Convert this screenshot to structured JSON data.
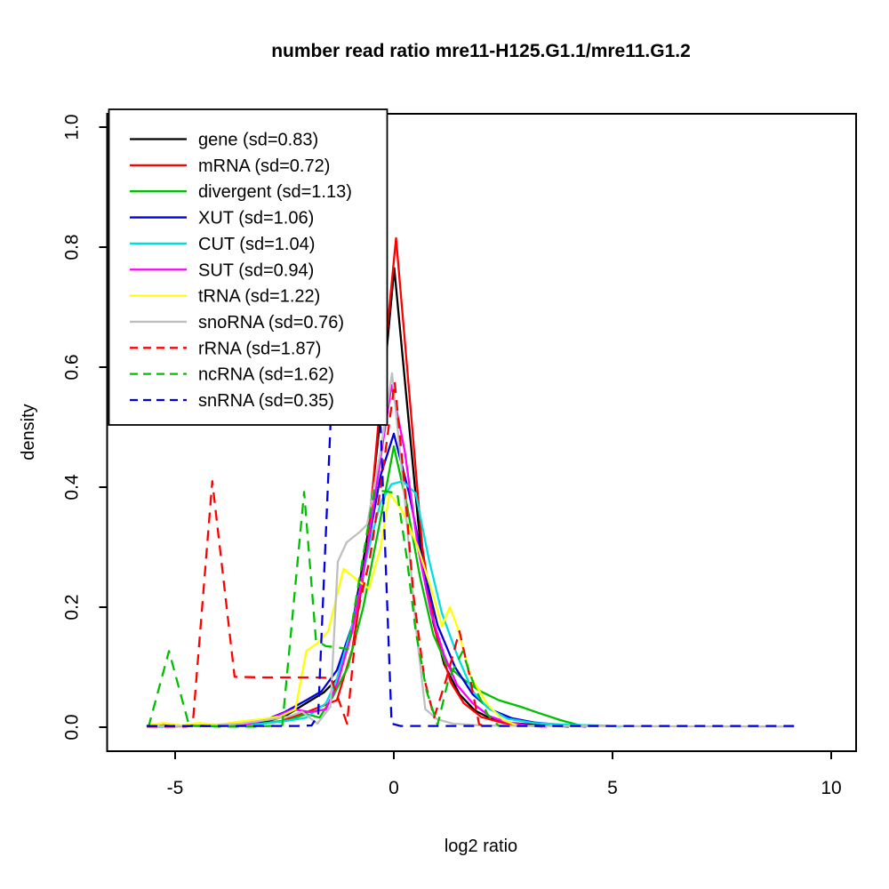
{
  "chart_data": {
    "type": "line",
    "title": "number read ratio mre11-H125.G1.1/mre11.G1.2",
    "xlabel": "log2 ratio",
    "ylabel": "density",
    "x_ticks": [
      {
        "value": -5,
        "label": "-5"
      },
      {
        "value": 0,
        "label": "0"
      },
      {
        "value": 5,
        "label": "5"
      },
      {
        "value": 10,
        "label": "10"
      }
    ],
    "y_ticks": [
      {
        "value": 0.0,
        "label": "0.0"
      },
      {
        "value": 0.2,
        "label": "0.2"
      },
      {
        "value": 0.4,
        "label": "0.4"
      },
      {
        "value": 0.6,
        "label": "0.6"
      },
      {
        "value": 0.8,
        "label": "0.8"
      },
      {
        "value": 1.0,
        "label": "1.0"
      }
    ],
    "xlim": [
      -6.57,
      10.57
    ],
    "ylim": [
      -0.04,
      1.02
    ],
    "grid": false,
    "legend_position": "top-left",
    "series": [
      {
        "name": "gene",
        "sd": 0.83,
        "legend_label": "gene (sd=0.83)",
        "color": "#000000",
        "dashed": false,
        "points": [
          [
            -5.65,
            0.002
          ],
          [
            -4.5,
            0.002
          ],
          [
            -3.6,
            0.004
          ],
          [
            -3.0,
            0.008
          ],
          [
            -2.5,
            0.018
          ],
          [
            -2.05,
            0.038
          ],
          [
            -1.6,
            0.058
          ],
          [
            -1.3,
            0.08
          ],
          [
            -0.95,
            0.17
          ],
          [
            -0.6,
            0.32
          ],
          [
            -0.3,
            0.52
          ],
          [
            0.01,
            0.765
          ],
          [
            0.3,
            0.54
          ],
          [
            0.6,
            0.31
          ],
          [
            0.9,
            0.175
          ],
          [
            1.15,
            0.105
          ],
          [
            1.5,
            0.055
          ],
          [
            1.85,
            0.028
          ],
          [
            2.2,
            0.015
          ],
          [
            2.7,
            0.007
          ],
          [
            3.2,
            0.004
          ],
          [
            3.7,
            0.002
          ],
          [
            4.0,
            0.001
          ]
        ]
      },
      {
        "name": "mRNA",
        "sd": 0.72,
        "legend_label": "mRNA (sd=0.72)",
        "color": "#FF0000",
        "dashed": false,
        "points": [
          [
            -5.65,
            0.001
          ],
          [
            -4.0,
            0.002
          ],
          [
            -3.2,
            0.004
          ],
          [
            -2.6,
            0.01
          ],
          [
            -2.1,
            0.022
          ],
          [
            -1.65,
            0.035
          ],
          [
            -1.3,
            0.045
          ],
          [
            -0.95,
            0.13
          ],
          [
            -0.6,
            0.3
          ],
          [
            -0.3,
            0.55
          ],
          [
            0.05,
            0.815
          ],
          [
            0.35,
            0.56
          ],
          [
            0.65,
            0.3
          ],
          [
            0.95,
            0.16
          ],
          [
            1.3,
            0.075
          ],
          [
            1.6,
            0.04
          ],
          [
            2.0,
            0.017
          ],
          [
            2.5,
            0.007
          ],
          [
            3.0,
            0.003
          ],
          [
            3.4,
            0.001
          ]
        ]
      },
      {
        "name": "divergent",
        "sd": 1.13,
        "legend_label": "divergent (sd=1.13)",
        "color": "#00BF00",
        "dashed": false,
        "points": [
          [
            -5.65,
            0.001
          ],
          [
            -3.4,
            0.003
          ],
          [
            -2.85,
            0.008
          ],
          [
            -2.4,
            0.012
          ],
          [
            -2.0,
            0.022
          ],
          [
            -1.7,
            0.016
          ],
          [
            -1.4,
            0.05
          ],
          [
            -1.05,
            0.1
          ],
          [
            -0.7,
            0.2
          ],
          [
            -0.35,
            0.33
          ],
          [
            0.0,
            0.468
          ],
          [
            0.3,
            0.37
          ],
          [
            0.6,
            0.25
          ],
          [
            0.9,
            0.155
          ],
          [
            1.2,
            0.105
          ],
          [
            1.55,
            0.082
          ],
          [
            1.95,
            0.061
          ],
          [
            2.4,
            0.045
          ],
          [
            2.9,
            0.034
          ],
          [
            3.3,
            0.024
          ],
          [
            3.8,
            0.012
          ],
          [
            4.3,
            0.002
          ]
        ]
      },
      {
        "name": "XUT",
        "sd": 1.06,
        "legend_label": "XUT (sd=1.06)",
        "color": "#0000E0",
        "dashed": false,
        "points": [
          [
            -5.65,
            0.001
          ],
          [
            -3.6,
            0.003
          ],
          [
            -3.0,
            0.01
          ],
          [
            -2.5,
            0.025
          ],
          [
            -2.0,
            0.045
          ],
          [
            -1.65,
            0.06
          ],
          [
            -1.3,
            0.095
          ],
          [
            -0.95,
            0.17
          ],
          [
            -0.6,
            0.3
          ],
          [
            -0.3,
            0.42
          ],
          [
            0.0,
            0.489
          ],
          [
            0.35,
            0.39
          ],
          [
            0.7,
            0.26
          ],
          [
            1.0,
            0.17
          ],
          [
            1.4,
            0.1
          ],
          [
            1.8,
            0.055
          ],
          [
            2.2,
            0.03
          ],
          [
            2.7,
            0.015
          ],
          [
            3.2,
            0.008
          ],
          [
            3.8,
            0.004
          ],
          [
            4.4,
            0.001
          ]
        ]
      },
      {
        "name": "CUT",
        "sd": 1.04,
        "legend_label": "CUT (sd=1.04)",
        "color": "#00DFE0",
        "dashed": false,
        "points": [
          [
            -5.65,
            0.001
          ],
          [
            -3.6,
            0.003
          ],
          [
            -3.0,
            0.006
          ],
          [
            -2.5,
            0.01
          ],
          [
            -2.0,
            0.016
          ],
          [
            -1.55,
            0.04
          ],
          [
            -1.3,
            0.08
          ],
          [
            -0.95,
            0.17
          ],
          [
            -0.6,
            0.29
          ],
          [
            -0.3,
            0.375
          ],
          [
            -0.05,
            0.405
          ],
          [
            0.2,
            0.41
          ],
          [
            0.5,
            0.39
          ],
          [
            0.8,
            0.28
          ],
          [
            1.1,
            0.19
          ],
          [
            1.45,
            0.12
          ],
          [
            1.8,
            0.06
          ],
          [
            2.15,
            0.032
          ],
          [
            2.6,
            0.014
          ],
          [
            3.2,
            0.007
          ],
          [
            4.0,
            0.004
          ],
          [
            4.7,
            0.003
          ],
          [
            5.2,
            0.001
          ]
        ]
      },
      {
        "name": "SUT",
        "sd": 0.94,
        "legend_label": "SUT (sd=0.94)",
        "color": "#FF00FF",
        "dashed": false,
        "points": [
          [
            -5.65,
            0.002
          ],
          [
            -5.45,
            0.005
          ],
          [
            -5.1,
            0.002
          ],
          [
            -4.0,
            0.002
          ],
          [
            -3.3,
            0.006
          ],
          [
            -2.8,
            0.015
          ],
          [
            -2.3,
            0.03
          ],
          [
            -1.9,
            0.025
          ],
          [
            -1.55,
            0.03
          ],
          [
            -1.28,
            0.075
          ],
          [
            -0.95,
            0.16
          ],
          [
            -0.6,
            0.3
          ],
          [
            -0.3,
            0.45
          ],
          [
            -0.05,
            0.57
          ],
          [
            0.25,
            0.46
          ],
          [
            0.55,
            0.3
          ],
          [
            0.85,
            0.19
          ],
          [
            1.15,
            0.12
          ],
          [
            1.45,
            0.07
          ],
          [
            1.8,
            0.04
          ],
          [
            2.2,
            0.018
          ],
          [
            2.6,
            0.008
          ],
          [
            3.1,
            0.003
          ],
          [
            3.5,
            0.001
          ]
        ]
      },
      {
        "name": "tRNA",
        "sd": 1.22,
        "legend_label": "tRNA (sd=1.22)",
        "color": "#FFFF00",
        "dashed": false,
        "points": [
          [
            -5.65,
            0.003
          ],
          [
            -5.25,
            0.007
          ],
          [
            -4.85,
            0.003
          ],
          [
            -4.45,
            0.007
          ],
          [
            -4.05,
            0.004
          ],
          [
            -3.55,
            0.009
          ],
          [
            -3.05,
            0.013
          ],
          [
            -2.6,
            0.018
          ],
          [
            -2.25,
            0.03
          ],
          [
            -2.0,
            0.127
          ],
          [
            -1.75,
            0.14
          ],
          [
            -1.5,
            0.16
          ],
          [
            -1.15,
            0.264
          ],
          [
            -0.85,
            0.246
          ],
          [
            -0.57,
            0.231
          ],
          [
            -0.3,
            0.3
          ],
          [
            -0.1,
            0.39
          ],
          [
            0.2,
            0.36
          ],
          [
            0.55,
            0.3
          ],
          [
            0.9,
            0.22
          ],
          [
            1.1,
            0.168
          ],
          [
            1.28,
            0.2
          ],
          [
            1.45,
            0.168
          ],
          [
            1.75,
            0.085
          ],
          [
            2.15,
            0.037
          ],
          [
            2.5,
            0.012
          ],
          [
            2.85,
            0.002
          ]
        ]
      },
      {
        "name": "snoRNA",
        "sd": 0.76,
        "legend_label": "snoRNA (sd=0.76)",
        "color": "#BFBFBF",
        "dashed": false,
        "points": [
          [
            -5.65,
            0.002
          ],
          [
            -4.4,
            0.002
          ],
          [
            -3.5,
            0.006
          ],
          [
            -2.9,
            0.012
          ],
          [
            -2.4,
            0.018
          ],
          [
            -2.1,
            0.026
          ],
          [
            -1.75,
            0.006
          ],
          [
            -1.45,
            0.034
          ],
          [
            -1.28,
            0.276
          ],
          [
            -1.08,
            0.308
          ],
          [
            -0.77,
            0.326
          ],
          [
            -0.61,
            0.338
          ],
          [
            -0.3,
            0.46
          ],
          [
            -0.04,
            0.59
          ],
          [
            0.25,
            0.38
          ],
          [
            0.5,
            0.17
          ],
          [
            0.72,
            0.03
          ],
          [
            1.0,
            0.013
          ],
          [
            1.35,
            0.006
          ],
          [
            2.0,
            0.003
          ],
          [
            3.0,
            0.002
          ],
          [
            9.15,
            0.001
          ]
        ]
      },
      {
        "name": "rRNA",
        "sd": 1.87,
        "legend_label": "rRNA (sd=1.87)",
        "color": "#FF0000",
        "dashed": true,
        "points": [
          [
            -5.65,
            0.001
          ],
          [
            -4.75,
            0.001
          ],
          [
            -4.6,
            0.003
          ],
          [
            -4.15,
            0.41
          ],
          [
            -3.64,
            0.084
          ],
          [
            -3.0,
            0.083
          ],
          [
            -2.4,
            0.083
          ],
          [
            -1.8,
            0.083
          ],
          [
            -1.44,
            0.082
          ],
          [
            -1.07,
            0.006
          ],
          [
            -0.83,
            0.19
          ],
          [
            -0.55,
            0.28
          ],
          [
            -0.3,
            0.4
          ],
          [
            0.02,
            0.575
          ],
          [
            0.25,
            0.4
          ],
          [
            0.45,
            0.22
          ],
          [
            0.7,
            0.08
          ],
          [
            0.92,
            0.016
          ],
          [
            1.2,
            0.08
          ],
          [
            1.5,
            0.16
          ],
          [
            1.72,
            0.09
          ],
          [
            1.95,
            0.005
          ],
          [
            2.1,
            0.001
          ]
        ]
      },
      {
        "name": "ncRNA",
        "sd": 1.62,
        "legend_label": "ncRNA (sd=1.62)",
        "color": "#00BF00",
        "dashed": true,
        "points": [
          [
            -5.65,
            0.001
          ],
          [
            -5.6,
            0.003
          ],
          [
            -5.14,
            0.127
          ],
          [
            -4.68,
            0.003
          ],
          [
            -4.0,
            0.001
          ],
          [
            -3.2,
            0.001
          ],
          [
            -2.55,
            0.003
          ],
          [
            -2.05,
            0.392
          ],
          [
            -1.78,
            0.145
          ],
          [
            -1.55,
            0.135
          ],
          [
            -1.28,
            0.133
          ],
          [
            -1.05,
            0.13
          ],
          [
            -0.85,
            0.22
          ],
          [
            -0.6,
            0.33
          ],
          [
            -0.45,
            0.395
          ],
          [
            -0.2,
            0.393
          ],
          [
            0.08,
            0.39
          ],
          [
            0.3,
            0.28
          ],
          [
            0.5,
            0.16
          ],
          [
            0.75,
            0.06
          ],
          [
            1.0,
            0.004
          ],
          [
            1.25,
            0.08
          ],
          [
            1.57,
            0.126
          ],
          [
            1.85,
            0.067
          ],
          [
            2.15,
            0.02
          ],
          [
            2.4,
            0.002
          ]
        ]
      },
      {
        "name": "snRNA",
        "sd": 0.35,
        "legend_label": "snRNA (sd=0.35)",
        "color": "#0000E0",
        "dashed": true,
        "points": [
          [
            -5.65,
            0.002
          ],
          [
            -2.2,
            0.002
          ],
          [
            -1.88,
            0.003
          ],
          [
            -1.73,
            0.02
          ],
          [
            -1.44,
            0.52
          ],
          [
            -0.75,
            0.53
          ],
          [
            -0.45,
            0.525
          ],
          [
            -0.3,
            0.5
          ],
          [
            -0.05,
            0.006
          ],
          [
            0.15,
            0.002
          ],
          [
            9.15,
            0.002
          ]
        ]
      }
    ]
  }
}
